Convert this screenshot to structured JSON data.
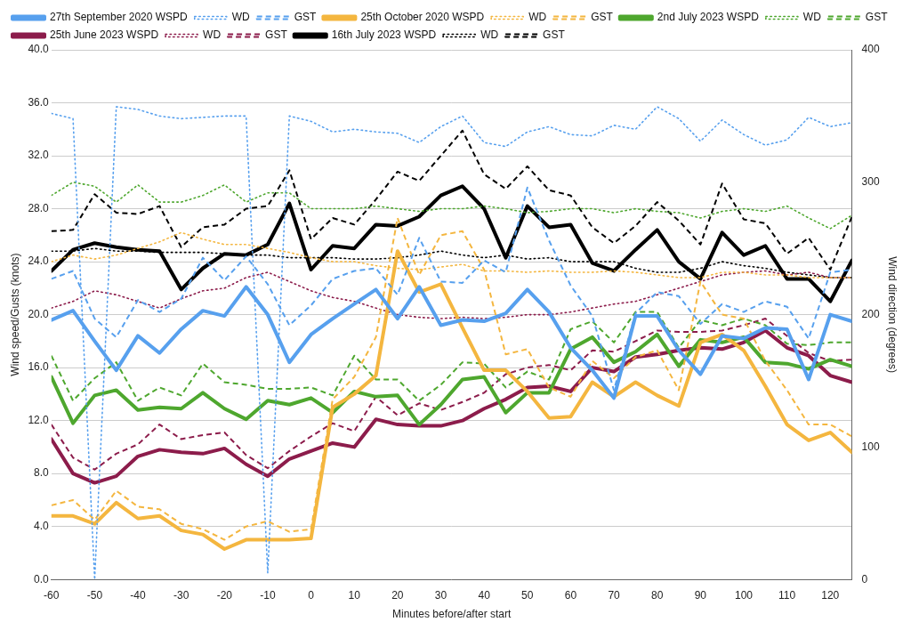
{
  "chart_data": {
    "type": "line",
    "x_label": "Minutes before/after start",
    "y_label": "Wind speed/Gusts (knots)",
    "y2_label": "Wind direction (degrees)",
    "x": [
      -60,
      -55,
      -50,
      -45,
      -40,
      -35,
      -30,
      -25,
      -20,
      -15,
      -10,
      -5,
      0,
      5,
      10,
      15,
      20,
      25,
      30,
      35,
      40,
      45,
      50,
      55,
      60,
      65,
      70,
      75,
      80,
      85,
      90,
      95,
      100,
      105,
      110,
      115,
      120,
      125
    ],
    "xlim": [
      -60,
      125
    ],
    "xticks": [
      -60,
      -50,
      -40,
      -30,
      -20,
      -10,
      0,
      10,
      20,
      30,
      40,
      50,
      60,
      70,
      80,
      90,
      100,
      110,
      120
    ],
    "ylim": [
      0,
      40
    ],
    "yticks": [
      {
        "value": 0,
        "label": "0.0"
      },
      {
        "value": 4,
        "label": "4.0"
      },
      {
        "value": 8,
        "label": "8.0"
      },
      {
        "value": 12,
        "label": "12.0"
      },
      {
        "value": 16,
        "label": "16.0"
      },
      {
        "value": 20,
        "label": "20.0"
      },
      {
        "value": 24,
        "label": "24.0"
      },
      {
        "value": 28,
        "label": "28.0"
      },
      {
        "value": 32,
        "label": "32.0"
      },
      {
        "value": 36,
        "label": "36.0"
      },
      {
        "value": 40,
        "label": "40.0"
      }
    ],
    "y2lim": [
      0,
      400
    ],
    "y2ticks": [
      0,
      100,
      200,
      300,
      400
    ],
    "grid": true,
    "legend": "top",
    "series": [
      {
        "name": "27th September 2020 WSPD",
        "color": "#57a0ee",
        "line_style": "solid",
        "values": [
          19.6,
          20.3,
          18,
          15.8,
          18.4,
          17.1,
          18.9,
          20.3,
          19.9,
          22.1,
          20,
          16.4,
          18.5,
          19.7,
          20.8,
          21.9,
          19.7,
          22.1,
          19.2,
          19.6,
          19.5,
          20.1,
          21.9,
          20.2,
          17.5,
          15.8,
          13.7,
          19.9,
          19.9,
          17.3,
          15.5,
          18.4,
          18.2,
          19,
          18.9,
          15.1,
          20,
          19.5
        ]
      },
      {
        "name": "WD",
        "color": "#57a0ee",
        "line_style": "dotted",
        "axis": "y2",
        "values": [
          352,
          348,
          0,
          357,
          355,
          350,
          348,
          349,
          350,
          350,
          5,
          350,
          346,
          338,
          340,
          338,
          337,
          330,
          342,
          350,
          330,
          327,
          338,
          342,
          336,
          335,
          343,
          340,
          357,
          348,
          331,
          347,
          336,
          328,
          332,
          349,
          342,
          345
        ]
      },
      {
        "name": "GST",
        "color": "#57a0ee",
        "line_style": "dashed",
        "values": [
          22.7,
          23.3,
          19.7,
          18.3,
          21.1,
          20.2,
          21.2,
          24.3,
          22.6,
          24.4,
          22.3,
          19.2,
          20.7,
          22.7,
          23.3,
          23.5,
          21.5,
          25.8,
          22.5,
          22.4,
          24.1,
          23.2,
          29.6,
          25.6,
          22.2,
          19.9,
          14.3,
          20.1,
          21.7,
          21.4,
          19.3,
          20.8,
          20.2,
          21,
          20.6,
          18.2,
          23.2,
          23.4
        ]
      },
      {
        "name": "25th October 2020 WSPD",
        "color": "#f4b63f",
        "line_style": "solid",
        "values": [
          4.8,
          4.8,
          4.2,
          5.8,
          4.6,
          4.8,
          3.7,
          3.4,
          2.3,
          3,
          3,
          3,
          3.1,
          13,
          14,
          15.4,
          24.8,
          21.7,
          22.3,
          19,
          15.8,
          15.8,
          14.2,
          12.2,
          12.3,
          14.9,
          13.8,
          14.9,
          13.9,
          13.1,
          17.9,
          18.5,
          17.3,
          14.6,
          11.7,
          10.5,
          11.1,
          9.6
        ]
      },
      {
        "name": "WD",
        "color": "#f4b63f",
        "line_style": "dotted",
        "axis": "y2",
        "values": [
          240,
          245,
          242,
          245,
          250,
          255,
          262,
          257,
          253,
          253,
          250,
          247,
          243,
          240,
          240,
          237,
          235,
          234,
          236,
          238,
          233,
          233,
          232,
          233,
          232,
          232,
          233,
          232,
          230,
          228,
          228,
          232,
          232,
          230,
          230,
          228,
          228,
          228
        ]
      },
      {
        "name": "GST",
        "color": "#f4b63f",
        "line_style": "dashed",
        "values": [
          5.6,
          6,
          4.5,
          6.7,
          5.5,
          5.3,
          4.2,
          3.8,
          3,
          4,
          4.4,
          3.6,
          3.8,
          13.6,
          15.3,
          18.3,
          27.3,
          23,
          26,
          26.3,
          23.4,
          17,
          17.4,
          14.5,
          13.8,
          16.5,
          15.2,
          16.8,
          17.3,
          14.3,
          22.5,
          20,
          19.7,
          16.5,
          14.3,
          11.7,
          11.7,
          10.8
        ]
      },
      {
        "name": "2nd July 2023 WSPD",
        "color": "#4ea72e",
        "line_style": "solid",
        "values": [
          15.3,
          11.8,
          13.9,
          14.3,
          12.8,
          13,
          12.9,
          14.1,
          12.9,
          12.1,
          13.5,
          13.2,
          13.7,
          12.6,
          14.2,
          13.8,
          13.9,
          11.7,
          13.2,
          15.1,
          15.3,
          12.6,
          14.1,
          14.1,
          17.4,
          18.3,
          16.4,
          17.2,
          18.5,
          16.1,
          18.1,
          17.9,
          18.3,
          16.4,
          16.3,
          15.9,
          16.6,
          16.1
        ]
      },
      {
        "name": "WD",
        "color": "#4ea72e",
        "line_style": "dotted",
        "axis": "y2",
        "values": [
          290,
          300,
          297,
          285,
          298,
          285,
          285,
          290,
          298,
          285,
          292,
          292,
          280,
          280,
          280,
          282,
          280,
          278,
          280,
          280,
          282,
          280,
          277,
          278,
          280,
          280,
          277,
          280,
          278,
          277,
          273,
          278,
          280,
          278,
          282,
          273,
          265,
          275
        ]
      },
      {
        "name": "GST",
        "color": "#4ea72e",
        "line_style": "dashed",
        "values": [
          16.9,
          13.5,
          15.2,
          16.4,
          13.5,
          14.5,
          13.9,
          16.3,
          14.9,
          14.7,
          14.4,
          14.4,
          14.5,
          13.9,
          16.9,
          15.1,
          15.1,
          13.5,
          14.7,
          16.4,
          16.3,
          14.5,
          15.7,
          15.1,
          18.9,
          19.5,
          17.9,
          20.2,
          20.2,
          17.5,
          19.6,
          19.2,
          19.7,
          19.2,
          17.8,
          17.7,
          17.9,
          17.9
        ]
      },
      {
        "name": "25th June 2023 WSPD",
        "color": "#8c1c4b",
        "line_style": "solid",
        "values": [
          10.6,
          8,
          7.3,
          7.8,
          9.3,
          9.8,
          9.6,
          9.5,
          9.9,
          8.7,
          7.8,
          9.1,
          9.7,
          10.3,
          10,
          12.1,
          11.7,
          11.6,
          11.6,
          12,
          12.9,
          13.6,
          14.5,
          14.6,
          14.2,
          16,
          15.7,
          16.8,
          17,
          17.3,
          17.5,
          17.4,
          17.9,
          18.8,
          17.5,
          16.9,
          15.4,
          14.9
        ]
      },
      {
        "name": "WD",
        "color": "#8c1c4b",
        "line_style": "dotted",
        "axis": "y2",
        "values": [
          205,
          210,
          218,
          215,
          210,
          205,
          212,
          218,
          220,
          228,
          232,
          225,
          218,
          213,
          210,
          205,
          200,
          198,
          197,
          198,
          197,
          198,
          200,
          200,
          202,
          205,
          208,
          210,
          215,
          220,
          225,
          230,
          232,
          233,
          230,
          232,
          228,
          228
        ]
      },
      {
        "name": "GST",
        "color": "#8c1c4b",
        "line_style": "dashed",
        "values": [
          11.7,
          9.2,
          8.3,
          9.5,
          10.2,
          11.7,
          10.6,
          10.9,
          11.1,
          9.4,
          8.4,
          9.7,
          10.8,
          11.8,
          11.2,
          13.8,
          12.4,
          13.3,
          12.8,
          13.4,
          14.1,
          15.5,
          16,
          16.2,
          15.8,
          17.3,
          17.2,
          18,
          18.8,
          18.7,
          18.7,
          18.8,
          19.2,
          19.7,
          18.4,
          17.1,
          16.5,
          16.6
        ]
      },
      {
        "name": "16th July 2023 WSPD",
        "color": "#000000",
        "line_style": "solid",
        "values": [
          23.3,
          24.9,
          25.4,
          25.1,
          24.9,
          24.8,
          21.9,
          23.5,
          24.6,
          24.5,
          25.3,
          28.4,
          23.4,
          25.2,
          25,
          26.8,
          26.7,
          27.4,
          29,
          29.7,
          28,
          24.3,
          28.2,
          26.6,
          26.8,
          23.9,
          23.3,
          24.9,
          26.4,
          24,
          22.7,
          26.2,
          24.5,
          25.2,
          22.7,
          22.7,
          21,
          24.1
        ]
      },
      {
        "name": "WD",
        "color": "#000000",
        "line_style": "dotted",
        "axis": "y2",
        "values": [
          248,
          248,
          250,
          248,
          248,
          247,
          247,
          247,
          246,
          245,
          245,
          243,
          243,
          243,
          242,
          242,
          243,
          245,
          248,
          245,
          243,
          245,
          242,
          243,
          240,
          240,
          240,
          235,
          232,
          232,
          235,
          240,
          237,
          235,
          232,
          230,
          228,
          228
        ]
      },
      {
        "name": "GST",
        "color": "#000000",
        "line_style": "dashed",
        "values": [
          26.3,
          26.4,
          29.1,
          27.7,
          27.6,
          28.2,
          25.1,
          26.6,
          26.8,
          28,
          28.2,
          30.9,
          25.7,
          27.3,
          26.8,
          28.7,
          30.8,
          30.1,
          32,
          33.9,
          30.6,
          29.5,
          31.2,
          29.4,
          29,
          26.6,
          25.4,
          26.7,
          28.5,
          27.1,
          25.3,
          29.9,
          27.2,
          26.9,
          24.6,
          25.8,
          23.4,
          27.4
        ]
      }
    ]
  }
}
